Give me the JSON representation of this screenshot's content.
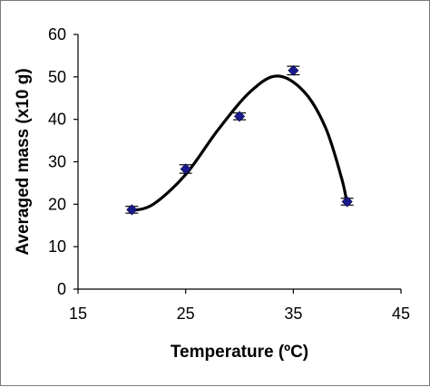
{
  "chart_data": {
    "type": "scatter",
    "title": "",
    "xlabel": "Temperature (ºC)",
    "ylabel": "Averaged mass (x10 g)",
    "xlim": [
      15,
      45
    ],
    "ylim": [
      0,
      60
    ],
    "x_ticks": [
      15,
      25,
      35,
      45
    ],
    "y_ticks": [
      0,
      10,
      20,
      30,
      40,
      50,
      60
    ],
    "grid": false,
    "legend": "none",
    "marker_color": "#1a1a8c",
    "line_color": "#000000",
    "series": [
      {
        "points": [
          {
            "x": 20,
            "y": 18.7,
            "err": 0.8
          },
          {
            "x": 25,
            "y": 28.3,
            "err": 1.0
          },
          {
            "x": 30,
            "y": 40.7,
            "err": 0.8
          },
          {
            "x": 35,
            "y": 51.5,
            "err": 1.0
          },
          {
            "x": 40,
            "y": 20.6,
            "err": 0.8
          }
        ]
      }
    ],
    "trendline": {
      "type": "smooth",
      "points": [
        {
          "x": 20,
          "y": 18.5
        },
        {
          "x": 22,
          "y": 20.0
        },
        {
          "x": 25,
          "y": 27.0
        },
        {
          "x": 28,
          "y": 37.5
        },
        {
          "x": 31,
          "y": 46.5
        },
        {
          "x": 33.5,
          "y": 50.2
        },
        {
          "x": 36,
          "y": 46.5
        },
        {
          "x": 38,
          "y": 38.0
        },
        {
          "x": 39.5,
          "y": 26.0
        },
        {
          "x": 40,
          "y": 20.0
        }
      ]
    }
  }
}
